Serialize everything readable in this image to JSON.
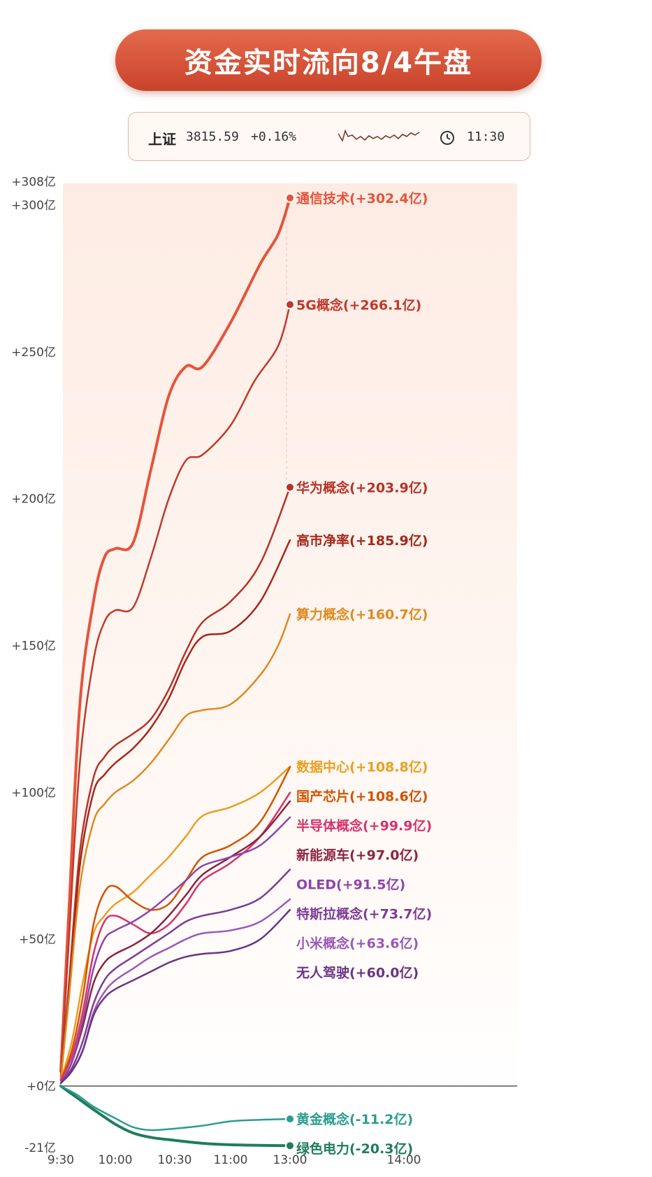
{
  "header": {
    "title": "资金实时流向8/4午盘",
    "index_name": "上证",
    "index_value": "3815.59",
    "index_change": "+0.16%",
    "time": "11:30",
    "sparkline_icon": "index-sparkline",
    "clock_icon": "clock-icon"
  },
  "chart_data": {
    "type": "line",
    "title": "资金实时流向8/4午盘",
    "x_ticks": [
      "9:30",
      "10:00",
      "10:30",
      "11:00",
      "13:00",
      "14:00"
    ],
    "y_ticks": [
      "+308亿",
      "+300亿",
      "+250亿",
      "+200亿",
      "+150亿",
      "+100亿",
      "+50亿",
      "+0亿",
      "-21亿"
    ],
    "y_tick_values": [
      308,
      300,
      250,
      200,
      150,
      100,
      50,
      0,
      -21
    ],
    "ylim": [
      -21,
      308
    ],
    "x_range": [
      0,
      5
    ],
    "grid": false,
    "series": [
      {
        "name": "通信技术",
        "label": "通信技术(+302.4亿)",
        "color": "#e4553b",
        "width": 4,
        "dot": true,
        "x": [
          0,
          0.15,
          0.35,
          0.6,
          0.8,
          1.0,
          1.3,
          1.6,
          1.9,
          2.2,
          2.5,
          3.0,
          3.5,
          3.8,
          4.0
        ],
        "y": [
          5,
          60,
          130,
          165,
          180,
          183,
          185,
          210,
          235,
          245,
          245,
          260,
          280,
          290,
          302.4
        ]
      },
      {
        "name": "5G概念",
        "label": "5G概念(+266.1亿)",
        "color": "#c0392b",
        "width": 2.5,
        "dot": true,
        "x": [
          0,
          0.15,
          0.35,
          0.6,
          0.8,
          1.0,
          1.3,
          1.6,
          1.9,
          2.2,
          2.5,
          3.0,
          3.4,
          3.8,
          4.0
        ],
        "y": [
          3,
          50,
          110,
          145,
          158,
          162,
          163,
          180,
          200,
          213,
          215,
          225,
          240,
          252,
          266.1
        ]
      },
      {
        "name": "华为概念",
        "label": "华为概念(+203.9亿)",
        "color": "#b83227",
        "width": 2.5,
        "dot": true,
        "x": [
          0,
          0.15,
          0.35,
          0.6,
          0.8,
          1.0,
          1.3,
          1.6,
          1.9,
          2.2,
          2.5,
          3.0,
          3.5,
          4.0
        ],
        "y": [
          2,
          35,
          80,
          105,
          112,
          116,
          120,
          125,
          135,
          148,
          158,
          165,
          178,
          203.9
        ]
      },
      {
        "name": "高市净率",
        "label": "高市净率(+185.9亿)",
        "color": "#a5281b",
        "width": 2.5,
        "dot": false,
        "x": [
          0,
          0.15,
          0.35,
          0.6,
          0.8,
          1.0,
          1.3,
          1.6,
          1.9,
          2.2,
          2.5,
          3.0,
          3.5,
          4.0
        ],
        "y": [
          2,
          32,
          75,
          100,
          106,
          110,
          115,
          122,
          132,
          145,
          153,
          155,
          165,
          185.9
        ]
      },
      {
        "name": "算力概念",
        "label": "算力概念(+160.7亿)",
        "color": "#e08a1e",
        "width": 2.5,
        "dot": false,
        "x": [
          0,
          0.15,
          0.35,
          0.6,
          0.8,
          1.0,
          1.3,
          1.6,
          1.9,
          2.2,
          2.5,
          3.0,
          3.5,
          3.8,
          4.0
        ],
        "y": [
          2,
          30,
          68,
          90,
          96,
          100,
          104,
          110,
          118,
          126,
          128,
          130,
          140,
          150,
          160.7
        ]
      },
      {
        "name": "数据中心",
        "label": "数据中心(+108.8亿)",
        "color": "#eaa020",
        "width": 2.5,
        "dot": false,
        "x": [
          0,
          0.2,
          0.4,
          0.6,
          0.8,
          1.0,
          1.3,
          1.6,
          1.9,
          2.2,
          2.5,
          3.0,
          3.5,
          4.0
        ],
        "y": [
          2,
          15,
          35,
          52,
          58,
          62,
          66,
          72,
          78,
          85,
          92,
          95,
          100,
          108.8
        ]
      },
      {
        "name": "国产芯片",
        "label": "国产芯片(+108.6亿)",
        "color": "#d35400",
        "width": 2.5,
        "dot": false,
        "x": [
          0,
          0.2,
          0.4,
          0.6,
          0.8,
          1.0,
          1.3,
          1.6,
          1.9,
          2.2,
          2.5,
          3.0,
          3.5,
          4.0
        ],
        "y": [
          2,
          12,
          30,
          55,
          66,
          68,
          63,
          60,
          62,
          70,
          78,
          82,
          90,
          108.6
        ]
      },
      {
        "name": "半导体概念",
        "label": "半导体概念(+99.9亿)",
        "color": "#d6336c",
        "width": 2.5,
        "dot": false,
        "x": [
          0,
          0.2,
          0.4,
          0.6,
          0.8,
          1.0,
          1.3,
          1.6,
          1.9,
          2.2,
          2.5,
          3.0,
          3.5,
          4.0
        ],
        "y": [
          2,
          10,
          25,
          45,
          56,
          58,
          55,
          52,
          55,
          62,
          70,
          76,
          85,
          99.9
        ]
      },
      {
        "name": "新能源车",
        "label": "新能源车(+97.0亿)",
        "color": "#8e2440",
        "width": 2.5,
        "dot": false,
        "x": [
          0,
          0.2,
          0.4,
          0.6,
          0.8,
          1.0,
          1.3,
          1.6,
          1.9,
          2.2,
          2.5,
          3.0,
          3.5,
          4.0
        ],
        "y": [
          1,
          8,
          20,
          35,
          42,
          45,
          48,
          52,
          58,
          65,
          72,
          78,
          85,
          97.0
        ]
      },
      {
        "name": "OLED",
        "label": "OLED(+91.5亿)",
        "color": "#8e44ad",
        "width": 2.5,
        "dot": false,
        "x": [
          0,
          0.2,
          0.4,
          0.6,
          0.8,
          1.0,
          1.3,
          1.6,
          1.9,
          2.2,
          2.5,
          3.0,
          3.5,
          4.0
        ],
        "y": [
          1,
          8,
          22,
          40,
          50,
          53,
          56,
          60,
          65,
          70,
          75,
          78,
          82,
          91.5
        ]
      },
      {
        "name": "特斯拉概念",
        "label": "特斯拉概念(+73.7亿)",
        "color": "#7d3c98",
        "width": 2.5,
        "dot": false,
        "x": [
          0,
          0.2,
          0.4,
          0.6,
          0.8,
          1.0,
          1.3,
          1.6,
          1.9,
          2.2,
          2.5,
          3.0,
          3.5,
          4.0
        ],
        "y": [
          1,
          6,
          15,
          28,
          36,
          40,
          44,
          48,
          52,
          56,
          58,
          60,
          64,
          73.7
        ]
      },
      {
        "name": "小米概念",
        "label": "小米概念(+63.6亿)",
        "color": "#9b59b6",
        "width": 2.5,
        "dot": false,
        "x": [
          0,
          0.2,
          0.4,
          0.6,
          0.8,
          1.0,
          1.3,
          1.6,
          1.9,
          2.2,
          2.5,
          3.0,
          3.5,
          4.0
        ],
        "y": [
          1,
          5,
          12,
          25,
          32,
          36,
          40,
          44,
          47,
          50,
          52,
          53,
          56,
          63.6
        ]
      },
      {
        "name": "无人驾驶",
        "label": "无人驾驶(+60.0亿)",
        "color": "#6c3483",
        "width": 2.5,
        "dot": false,
        "x": [
          0,
          0.2,
          0.4,
          0.6,
          0.8,
          1.0,
          1.3,
          1.6,
          1.9,
          2.2,
          2.5,
          3.0,
          3.5,
          4.0
        ],
        "y": [
          1,
          5,
          12,
          24,
          30,
          33,
          36,
          39,
          42,
          44,
          45,
          46,
          50,
          60.0
        ]
      },
      {
        "name": "绿色电力",
        "label": "绿色电力(-20.3亿)",
        "color": "#1e7d5c",
        "width": 4,
        "dot": true,
        "x": [
          0,
          0.3,
          0.6,
          1.0,
          1.3,
          1.6,
          2.0,
          2.5,
          3.0,
          3.5,
          4.0
        ],
        "y": [
          0,
          -4,
          -8,
          -13,
          -16,
          -17.5,
          -18.5,
          -19.5,
          -20,
          -20.2,
          -20.3
        ]
      },
      {
        "name": "黄金概念",
        "label": "黄金概念(-11.2亿)",
        "color": "#2a9d8f",
        "width": 2.5,
        "dot": true,
        "x": [
          0,
          0.3,
          0.6,
          1.0,
          1.3,
          1.6,
          2.0,
          2.5,
          3.0,
          3.5,
          4.0
        ],
        "y": [
          0,
          -3,
          -7,
          -11,
          -14,
          -15,
          -14.5,
          -13.5,
          -12,
          -11.5,
          -11.2
        ]
      }
    ]
  }
}
